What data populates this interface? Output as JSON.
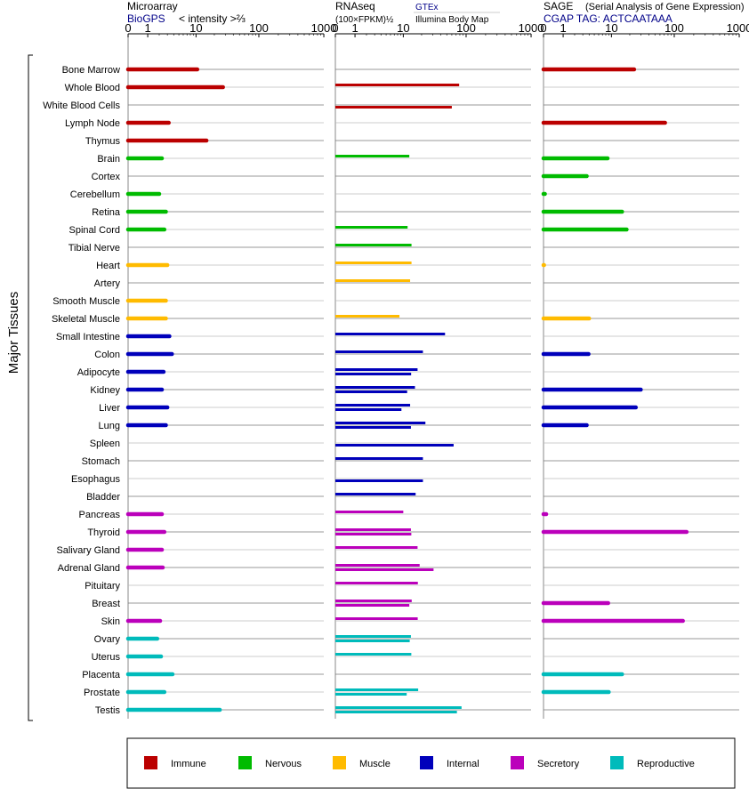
{
  "panel_headers": {
    "microarray": {
      "title": "Microarray",
      "source": "BioGPS",
      "unit": "< intensity >⅔"
    },
    "rnaseq": {
      "title": "RNAseq",
      "unit": "(100×FPKM)½",
      "source_top": "GTEx",
      "source_bottom": "Illumina Body Map"
    },
    "sage": {
      "title": "SAGE",
      "subtitle": "(Serial Analysis of Gene Expression)",
      "tag": "CGAP TAG: ACTCAATAAA"
    }
  },
  "y_axis_label": "Major Tissues",
  "colors": {
    "Immune": "#bb0000",
    "Nervous": "#00bb00",
    "Muscle": "#ffbb00",
    "Internal": "#0000bb",
    "Secretory": "#bb00bb",
    "Reproductive": "#00bbbb"
  },
  "chart_data": {
    "type": "bar",
    "orientation": "horizontal",
    "categories": [
      "Bone Marrow",
      "Whole Blood",
      "White Blood Cells",
      "Lymph Node",
      "Thymus",
      "Brain",
      "Cortex",
      "Cerebellum",
      "Retina",
      "Spinal Cord",
      "Tibial Nerve",
      "Heart",
      "Artery",
      "Smooth Muscle",
      "Skeletal Muscle",
      "Small Intestine",
      "Colon",
      "Adipocyte",
      "Kidney",
      "Liver",
      "Lung",
      "Spleen",
      "Stomach",
      "Esophagus",
      "Bladder",
      "Pancreas",
      "Thyroid",
      "Salivary Gland",
      "Adrenal Gland",
      "Pituitary",
      "Breast",
      "Skin",
      "Ovary",
      "Uterus",
      "Placenta",
      "Prostate",
      "Testis"
    ],
    "groups": [
      "Immune",
      "Immune",
      "Immune",
      "Immune",
      "Immune",
      "Nervous",
      "Nervous",
      "Nervous",
      "Nervous",
      "Nervous",
      "Nervous",
      "Muscle",
      "Muscle",
      "Muscle",
      "Muscle",
      "Internal",
      "Internal",
      "Internal",
      "Internal",
      "Internal",
      "Internal",
      "Internal",
      "Internal",
      "Internal",
      "Internal",
      "Secretory",
      "Secretory",
      "Secretory",
      "Secretory",
      "Secretory",
      "Secretory",
      "Secretory",
      "Reproductive",
      "Reproductive",
      "Reproductive",
      "Reproductive",
      "Reproductive"
    ],
    "xticks": [
      0,
      1,
      10,
      100,
      1000
    ],
    "xrange": [
      0,
      1000
    ],
    "series": [
      {
        "values": [
          10.5,
          27.5,
          null,
          3.2,
          14.9,
          2.3,
          null,
          2.0,
          2.8,
          2.6,
          null,
          3.0,
          null,
          2.8,
          2.8,
          3.3,
          3.7,
          2.5,
          2.3,
          3.0,
          2.8,
          null,
          null,
          null,
          null,
          2.3,
          2.6,
          2.3,
          2.4,
          null,
          null,
          2.1,
          1.8,
          2.2,
          3.8,
          2.6,
          24.5
        ]
      },
      {
        "values": [
          null,
          78,
          null,
          null,
          null,
          12.6,
          null,
          null,
          null,
          11.8,
          13.7,
          13.7,
          13.0,
          null,
          8.6,
          47,
          21,
          17.2,
          15.6,
          13.0,
          23,
          null,
          21,
          null,
          16.0,
          10.0,
          13.4,
          17.2,
          18.6,
          17.4,
          13.8,
          17.3,
          13.4,
          13.6,
          null,
          17.6,
          85
        ]
      },
      {
        "values": [
          null,
          null,
          60,
          null,
          null,
          null,
          null,
          null,
          null,
          null,
          null,
          null,
          null,
          null,
          null,
          null,
          null,
          13.5,
          11.6,
          9.3,
          13.4,
          64,
          null,
          21,
          null,
          null,
          13.6,
          null,
          31,
          null,
          12.6,
          null,
          12.8,
          null,
          null,
          11.4,
          72
        ]
      },
      {
        "values": [
          23.5,
          null,
          null,
          72,
          null,
          8.6,
          3.6,
          0.05,
          15.0,
          17.8,
          null,
          0.02,
          null,
          null,
          4.0,
          null,
          3.9,
          null,
          30,
          25,
          3.6,
          null,
          null,
          null,
          null,
          0.1,
          155,
          null,
          null,
          null,
          8.8,
          136,
          null,
          null,
          15.0,
          9.0,
          null
        ]
      }
    ],
    "legend": [
      "Immune",
      "Nervous",
      "Muscle",
      "Internal",
      "Secretory",
      "Reproductive"
    ],
    "legend_position": "bottom"
  }
}
